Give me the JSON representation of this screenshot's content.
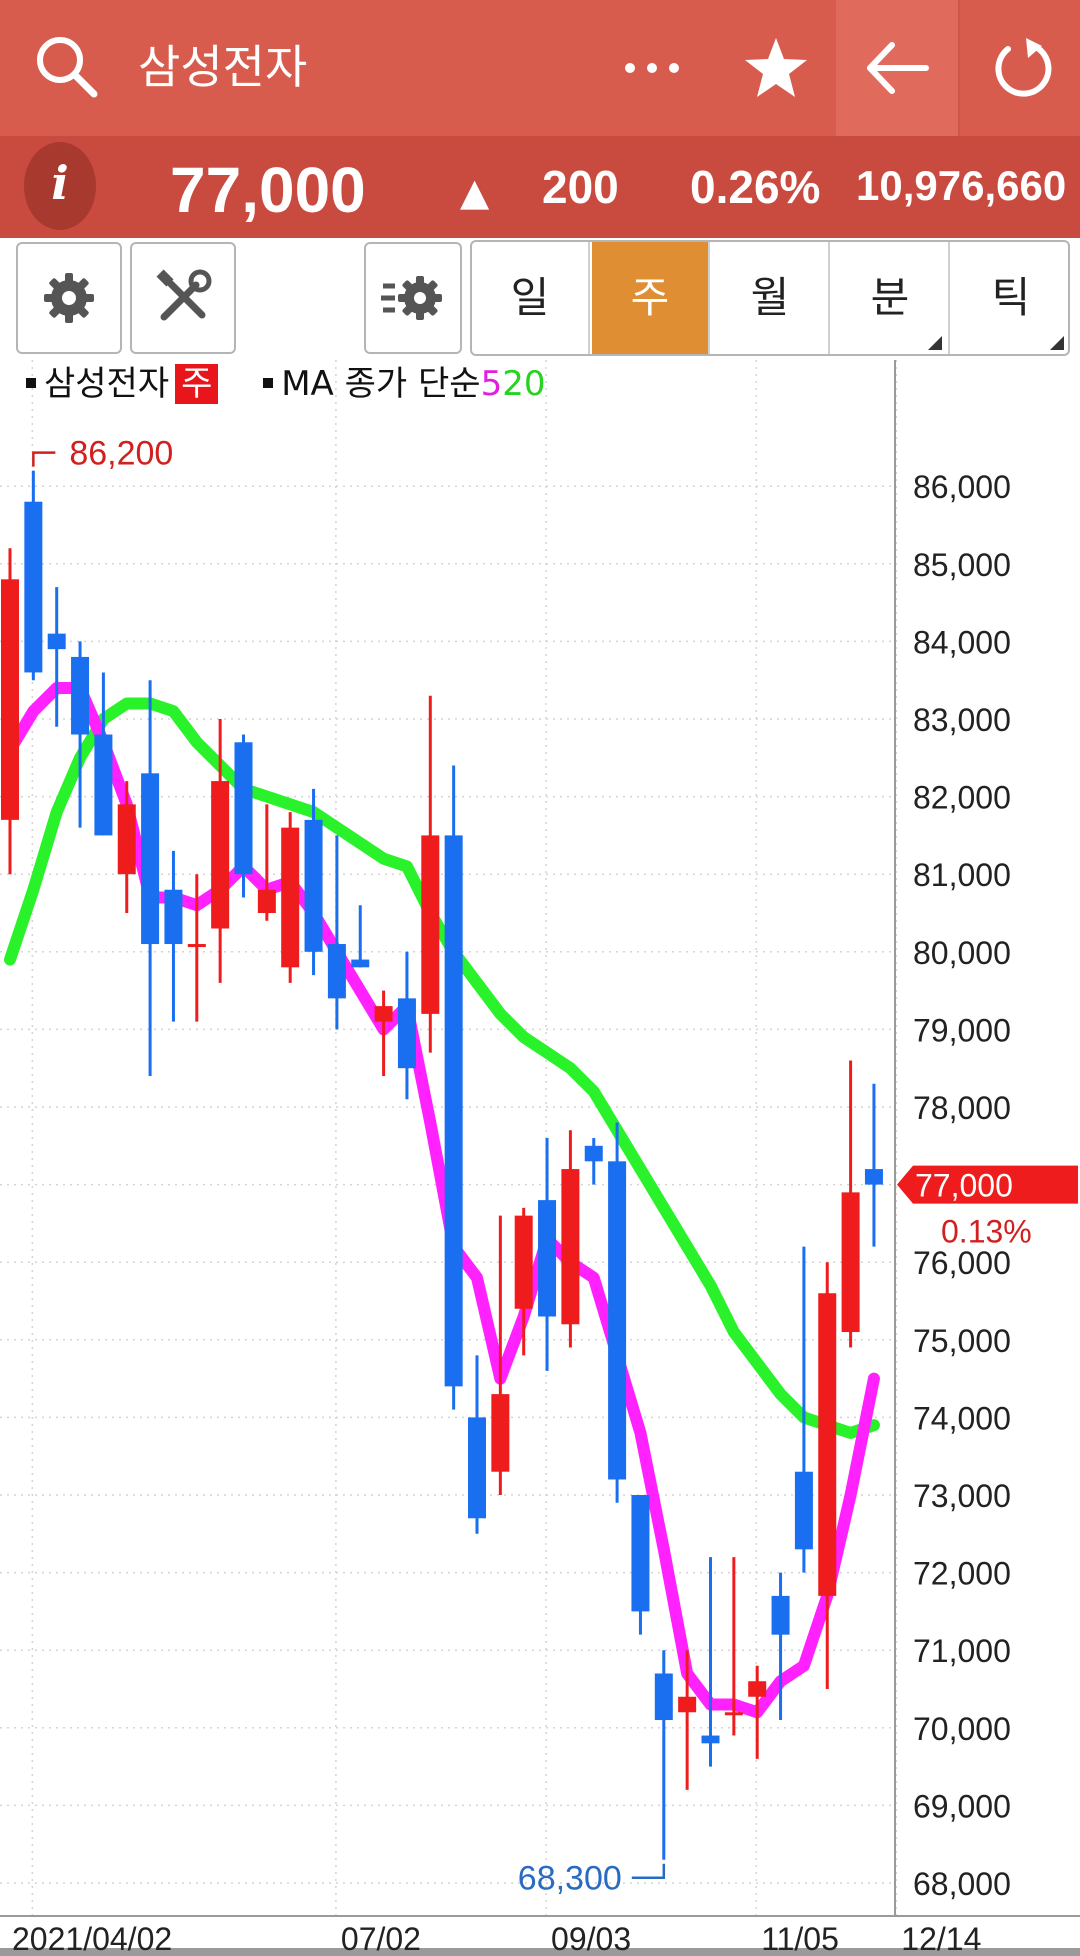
{
  "header": {
    "title": "삼성전자",
    "icons": [
      "search-icon",
      "more-icon",
      "star-icon",
      "back-arrow-icon",
      "refresh-icon"
    ]
  },
  "quote": {
    "info_label": "i",
    "price": "77,000",
    "direction": "▲",
    "change": "200",
    "change_pct": "0.26%",
    "volume": "10,976,660"
  },
  "toolbar": {
    "icons": [
      "settings-icon",
      "tools-icon",
      "indicator-settings-icon"
    ],
    "periods": [
      {
        "label": "일",
        "active": false,
        "has_menu": false
      },
      {
        "label": "주",
        "active": true,
        "has_menu": false
      },
      {
        "label": "월",
        "active": false,
        "has_menu": false
      },
      {
        "label": "분",
        "active": false,
        "has_menu": true
      },
      {
        "label": "틱",
        "active": false,
        "has_menu": true
      }
    ]
  },
  "legend": {
    "series_name": "삼성전자",
    "period_badge": "주",
    "indicator": "MA 종가 단순",
    "ma_short": "5",
    "ma_long": "20"
  },
  "chart_data": {
    "type": "candlestick",
    "y_ticks": [
      "86,000",
      "85,000",
      "84,000",
      "83,000",
      "82,000",
      "81,000",
      "80,000",
      "79,000",
      "78,000",
      "77,000",
      "76,000",
      "75,000",
      "74,000",
      "73,000",
      "72,000",
      "71,000",
      "70,000",
      "69,000",
      "68,000"
    ],
    "ylim": [
      67800,
      87600
    ],
    "x_labels": [
      "2021/04/02",
      "07/02",
      "09/03",
      "11/05",
      "12/14"
    ],
    "x_label_index": [
      1,
      14,
      23,
      32,
      38
    ],
    "high_label": "86,200",
    "high_index": 1,
    "high_value": 86200,
    "low_label": "68,300",
    "low_index": 28,
    "low_value": 68300,
    "last_price_label": "77,000",
    "last_price_value": 77000,
    "last_change_label": "0.13%",
    "colors": {
      "up": "#ee1c1c",
      "down": "#1a6ef0",
      "ma5": "#ff22ff",
      "ma20": "#2af22a"
    },
    "candles": [
      {
        "o": 81700,
        "h": 85200,
        "l": 81000,
        "c": 84800
      },
      {
        "o": 85800,
        "h": 86200,
        "l": 83500,
        "c": 83600
      },
      {
        "o": 84100,
        "h": 84700,
        "l": 82900,
        "c": 83900
      },
      {
        "o": 83800,
        "h": 84000,
        "l": 81600,
        "c": 82800
      },
      {
        "o": 82800,
        "h": 83600,
        "l": 81500,
        "c": 81500
      },
      {
        "o": 81000,
        "h": 82200,
        "l": 80500,
        "c": 81900
      },
      {
        "o": 82300,
        "h": 83500,
        "l": 78400,
        "c": 80100
      },
      {
        "o": 80800,
        "h": 81300,
        "l": 79100,
        "c": 80100
      },
      {
        "o": 80100,
        "h": 81000,
        "l": 79100,
        "c": 80100
      },
      {
        "o": 80300,
        "h": 83000,
        "l": 79600,
        "c": 82200
      },
      {
        "o": 82700,
        "h": 82800,
        "l": 80700,
        "c": 81000
      },
      {
        "o": 80500,
        "h": 81900,
        "l": 80400,
        "c": 80800
      },
      {
        "o": 79800,
        "h": 81800,
        "l": 79600,
        "c": 81600
      },
      {
        "o": 81700,
        "h": 82100,
        "l": 79700,
        "c": 80000
      },
      {
        "o": 80100,
        "h": 81500,
        "l": 79000,
        "c": 79400
      },
      {
        "o": 79900,
        "h": 80600,
        "l": 79800,
        "c": 79800
      },
      {
        "o": 79100,
        "h": 79500,
        "l": 78400,
        "c": 79300
      },
      {
        "o": 79400,
        "h": 80000,
        "l": 78100,
        "c": 78500
      },
      {
        "o": 79200,
        "h": 83300,
        "l": 78700,
        "c": 81500
      },
      {
        "o": 81500,
        "h": 82400,
        "l": 74100,
        "c": 74400
      },
      {
        "o": 74000,
        "h": 74800,
        "l": 72500,
        "c": 72700
      },
      {
        "o": 73300,
        "h": 76600,
        "l": 73000,
        "c": 74300
      },
      {
        "o": 75400,
        "h": 76700,
        "l": 74800,
        "c": 76600
      },
      {
        "o": 76800,
        "h": 77600,
        "l": 74600,
        "c": 75300
      },
      {
        "o": 75200,
        "h": 77700,
        "l": 74900,
        "c": 77200
      },
      {
        "o": 77500,
        "h": 77600,
        "l": 77000,
        "c": 77300
      },
      {
        "o": 77300,
        "h": 77800,
        "l": 72900,
        "c": 73200
      },
      {
        "o": 73000,
        "h": 73000,
        "l": 71200,
        "c": 71500
      },
      {
        "o": 70700,
        "h": 71000,
        "l": 68300,
        "c": 70100
      },
      {
        "o": 70200,
        "h": 71000,
        "l": 69200,
        "c": 70400
      },
      {
        "o": 69900,
        "h": 72200,
        "l": 69500,
        "c": 69800
      },
      {
        "o": 70200,
        "h": 72200,
        "l": 69900,
        "c": 70200
      },
      {
        "o": 70400,
        "h": 70800,
        "l": 69600,
        "c": 70600
      },
      {
        "o": 71700,
        "h": 72000,
        "l": 70100,
        "c": 71200
      },
      {
        "o": 73300,
        "h": 76200,
        "l": 72000,
        "c": 72300
      },
      {
        "o": 71700,
        "h": 76000,
        "l": 70500,
        "c": 75600
      },
      {
        "o": 75100,
        "h": 78600,
        "l": 74900,
        "c": 76900
      },
      {
        "o": 77200,
        "h": 78300,
        "l": 76200,
        "c": 77000
      }
    ],
    "ma5": [
      82600,
      83100,
      83400,
      83400,
      82700,
      81900,
      80700,
      80700,
      80600,
      80800,
      81100,
      80800,
      80900,
      80500,
      80000,
      79500,
      79000,
      79300,
      77800,
      76200,
      75800,
      74500,
      75300,
      76300,
      76000,
      75800,
      74800,
      73800,
      72300,
      70700,
      70300,
      70300,
      70200,
      70600,
      70800,
      71700,
      73000,
      74500
    ],
    "ma20": [
      79900,
      80800,
      81800,
      82500,
      83000,
      83200,
      83200,
      83100,
      82700,
      82400,
      82100,
      82000,
      81900,
      81800,
      81600,
      81400,
      81200,
      81100,
      80500,
      80000,
      79600,
      79200,
      78900,
      78700,
      78500,
      78200,
      77700,
      77200,
      76700,
      76200,
      75700,
      75100,
      74700,
      74300,
      74000,
      73900,
      73800,
      73900
    ]
  }
}
